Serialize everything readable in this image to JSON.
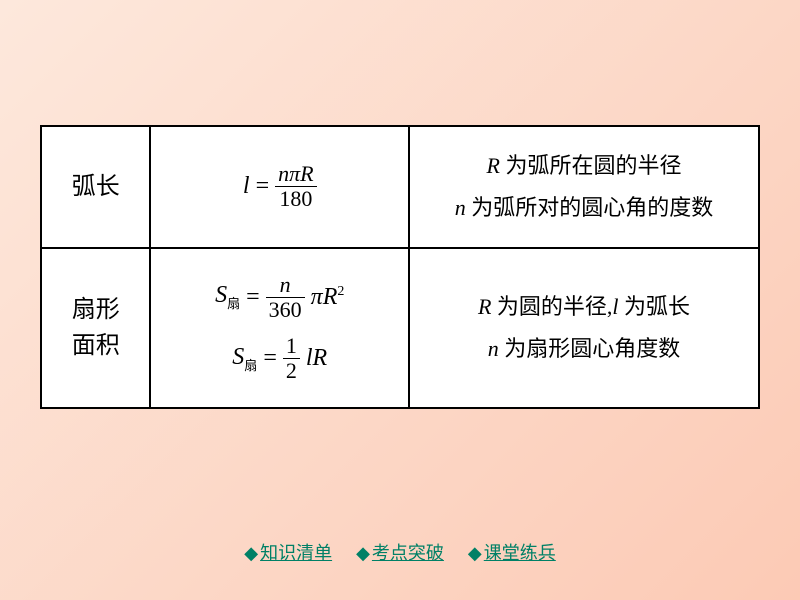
{
  "table": {
    "rows": [
      {
        "label": "弧长",
        "formulas": [
          {
            "lhs": "l",
            "eq": "=",
            "num": "nπR",
            "den": "180",
            "tail": ""
          }
        ],
        "desc": [
          {
            "var": "R",
            "text": " 为弧所在圆的半径"
          },
          {
            "var": "n",
            "text": " 为弧所对的圆心角的度数"
          }
        ]
      },
      {
        "label_lines": [
          "扇形",
          "面积"
        ],
        "formulas": [
          {
            "lhs": "S",
            "sub": "扇",
            "eq": "=",
            "num": "n",
            "den": "360",
            "tail": "πR",
            "sup": "2"
          },
          {
            "lhs": "S",
            "sub": "扇",
            "eq": "=",
            "num": "1",
            "den": "2",
            "tail": "lR"
          }
        ],
        "desc": [
          {
            "var": "R",
            "text": " 为圆的半径,",
            "var2": "l",
            "text2": " 为弧长"
          },
          {
            "var": "n",
            "text": " 为扇形圆心角度数"
          }
        ]
      }
    ]
  },
  "nav": {
    "items": [
      "知识清单",
      "考点突破",
      "课堂练兵"
    ],
    "bullet": "◆",
    "color": "#008066"
  }
}
